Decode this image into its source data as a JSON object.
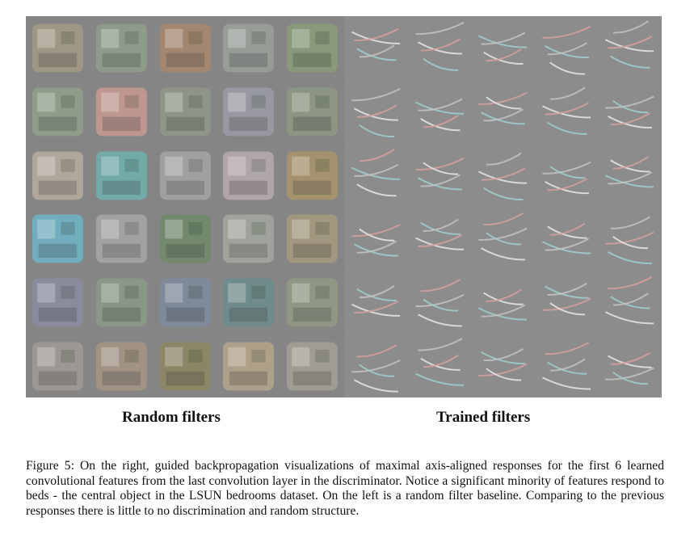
{
  "labels": {
    "random": "Random filters",
    "trained": "Trained filters"
  },
  "caption": "Figure 5: On the right, guided backpropagation visualizations of maximal axis-aligned responses for the first 6 learned convolutional features from the last convolution layer in the discriminator. Notice a significant minority of features respond to beds - the central object in the LSUN bedrooms dataset. On the left is a random filter baseline. Comparing to the previous responses there is little to no discrimination and random structure.",
  "grid": {
    "rows": 6,
    "cols": 5,
    "random_colors": [
      [
        "#a39a86",
        "#8f9f8c",
        "#a8866c",
        "#9aa09a",
        "#8a9a78"
      ],
      [
        "#8fa08a",
        "#c89a92",
        "#8f9888",
        "#9b9ba6",
        "#8c9880"
      ],
      [
        "#b9aca0",
        "#6fb0ae",
        "#a4a4a4",
        "#b6aab0",
        "#a89468"
      ],
      [
        "#6eb4c8",
        "#a7a7a7",
        "#6f8a6a",
        "#a4a8a0",
        "#a49a7c"
      ],
      [
        "#8a8ca0",
        "#8a9a86",
        "#7c8a9c",
        "#6c8c8c",
        "#909a84"
      ],
      [
        "#a09a94",
        "#a69484",
        "#8c8660",
        "#b6a68a",
        "#a4a098"
      ]
    ]
  }
}
